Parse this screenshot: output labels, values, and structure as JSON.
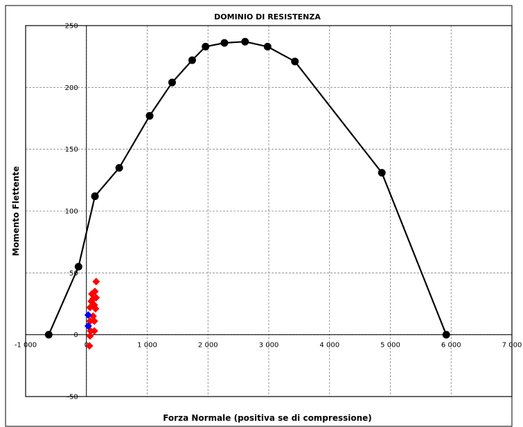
{
  "chart_data": {
    "type": "scatter",
    "title": "DOMINIO DI RESISTENZA",
    "xlabel": "Forza Normale (positiva se di compressione)",
    "ylabel": "Momento Flettente",
    "xlim": [
      -1000,
      7000
    ],
    "ylim": [
      -50,
      250
    ],
    "x_ticks": [
      -1000,
      0,
      1000,
      2000,
      3000,
      4000,
      5000,
      6000,
      7000
    ],
    "x_tick_labels": [
      "-1 000",
      "0",
      "1 000",
      "2 000",
      "3 000",
      "4 000",
      "5 000",
      "6 000",
      "7 000"
    ],
    "y_ticks": [
      -50,
      0,
      50,
      100,
      150,
      200,
      250
    ],
    "y_tick_labels": [
      "-50",
      "0",
      "50",
      "100",
      "150",
      "200",
      "250"
    ],
    "grid": true,
    "legend": "none",
    "series": [
      {
        "type": "line",
        "marker": "circle",
        "color": "#000000",
        "points": [
          [
            -620,
            0
          ],
          [
            -130,
            55
          ],
          [
            140,
            112
          ],
          [
            540,
            135
          ],
          [
            1040,
            177
          ],
          [
            1410,
            204
          ],
          [
            1740,
            222
          ],
          [
            1960,
            233
          ],
          [
            2270,
            236
          ],
          [
            2610,
            237
          ],
          [
            2980,
            233
          ],
          [
            3430,
            221
          ],
          [
            4860,
            131
          ],
          [
            5920,
            0
          ]
        ]
      },
      {
        "type": "scatter",
        "marker": "diamond",
        "color": "#ff0000",
        "points": [
          [
            160,
            43
          ],
          [
            140,
            35
          ],
          [
            90,
            33
          ],
          [
            110,
            29
          ],
          [
            160,
            30
          ],
          [
            80,
            27
          ],
          [
            130,
            24
          ],
          [
            60,
            22
          ],
          [
            150,
            21
          ],
          [
            110,
            15
          ],
          [
            60,
            11
          ],
          [
            130,
            11
          ],
          [
            70,
            3
          ],
          [
            130,
            3
          ],
          [
            60,
            -1
          ],
          [
            50,
            -9
          ]
        ]
      },
      {
        "type": "scatter",
        "marker": "diamond",
        "color": "#0000ff",
        "points": [
          [
            30,
            16
          ],
          [
            30,
            7
          ]
        ]
      }
    ]
  }
}
